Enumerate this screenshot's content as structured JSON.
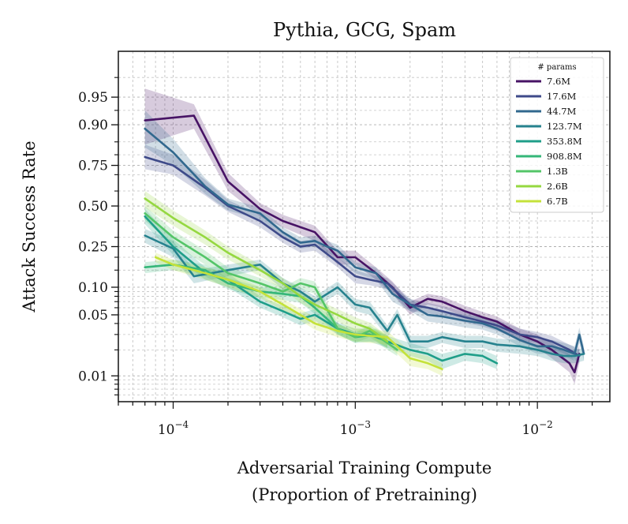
{
  "chart_data": {
    "type": "line",
    "title": "Pythia, GCG, Spam",
    "xlabel": [
      "Adversarial Training Compute",
      "(Proportion of Pretraining)"
    ],
    "ylabel": "Attack Success Rate",
    "x_scale": "log",
    "y_scale": "logit",
    "xlim": [
      5e-05,
      0.025
    ],
    "ylim": [
      0.005,
      0.985
    ],
    "x_ticks": [
      {
        "value": 0.0001,
        "label": "10^-4"
      },
      {
        "value": 0.001,
        "label": "10^-3"
      },
      {
        "value": 0.01,
        "label": "10^-2"
      }
    ],
    "y_ticks": [
      {
        "value": 0.01,
        "label": "0.01"
      },
      {
        "value": 0.05,
        "label": "0.05"
      },
      {
        "value": 0.1,
        "label": "0.10"
      },
      {
        "value": 0.25,
        "label": "0.25"
      },
      {
        "value": 0.5,
        "label": "0.50"
      },
      {
        "value": 0.75,
        "label": "0.75"
      },
      {
        "value": 0.9,
        "label": "0.90"
      },
      {
        "value": 0.95,
        "label": "0.95"
      }
    ],
    "grid": true,
    "legend": {
      "title": "# params",
      "position": "top-right"
    },
    "series": [
      {
        "name": "7.6M",
        "color": "#471365",
        "x": [
          7e-05,
          0.00013,
          0.0002,
          0.0003,
          0.0004,
          0.0006,
          0.0008,
          0.001,
          0.0013,
          0.0016,
          0.002,
          0.0025,
          0.003,
          0.004,
          0.005,
          0.006,
          0.008,
          0.01,
          0.012,
          0.015,
          0.016,
          0.017
        ],
        "y": [
          0.91,
          0.92,
          0.66,
          0.48,
          0.4,
          0.33,
          0.2,
          0.2,
          0.14,
          0.1,
          0.06,
          0.075,
          0.07,
          0.055,
          0.047,
          0.042,
          0.03,
          0.025,
          0.02,
          0.014,
          0.011,
          0.018
        ],
        "lo": [
          0.84,
          0.89,
          0.6,
          0.43,
          0.36,
          0.28,
          0.17,
          0.17,
          0.12,
          0.085,
          0.05,
          0.065,
          0.06,
          0.047,
          0.04,
          0.036,
          0.025,
          0.021,
          0.016,
          0.011,
          0.008,
          0.014
        ],
        "hi": [
          0.96,
          0.94,
          0.71,
          0.52,
          0.44,
          0.37,
          0.23,
          0.23,
          0.16,
          0.115,
          0.07,
          0.085,
          0.08,
          0.063,
          0.054,
          0.048,
          0.035,
          0.03,
          0.024,
          0.018,
          0.015,
          0.023
        ]
      },
      {
        "name": "17.6M",
        "color": "#3e4a89",
        "x": [
          7e-05,
          0.0001,
          0.00015,
          0.0002,
          0.0003,
          0.0004,
          0.0005,
          0.0006,
          0.0008,
          0.001,
          0.0012,
          0.0015,
          0.002,
          0.0025,
          0.003,
          0.004,
          0.005,
          0.006,
          0.008,
          0.01,
          0.012,
          0.015,
          0.017
        ],
        "y": [
          0.79,
          0.75,
          0.62,
          0.5,
          0.4,
          0.3,
          0.25,
          0.26,
          0.18,
          0.13,
          0.12,
          0.11,
          0.065,
          0.06,
          0.055,
          0.047,
          0.042,
          0.038,
          0.03,
          0.028,
          0.025,
          0.02,
          0.017
        ],
        "lo": [
          0.73,
          0.7,
          0.57,
          0.46,
          0.36,
          0.27,
          0.22,
          0.23,
          0.16,
          0.11,
          0.105,
          0.095,
          0.055,
          0.052,
          0.048,
          0.041,
          0.037,
          0.033,
          0.026,
          0.024,
          0.021,
          0.017,
          0.014
        ],
        "hi": [
          0.84,
          0.8,
          0.67,
          0.54,
          0.44,
          0.33,
          0.28,
          0.29,
          0.2,
          0.15,
          0.135,
          0.125,
          0.075,
          0.068,
          0.063,
          0.054,
          0.048,
          0.044,
          0.035,
          0.032,
          0.029,
          0.023,
          0.02
        ]
      },
      {
        "name": "44.7M",
        "color": "#31688e",
        "x": [
          7e-05,
          0.0001,
          0.00015,
          0.0002,
          0.0003,
          0.0004,
          0.0005,
          0.0006,
          0.0007,
          0.0008,
          0.001,
          0.0013,
          0.0016,
          0.002,
          0.0025,
          0.003,
          0.004,
          0.005,
          0.006,
          0.008,
          0.01,
          0.012,
          0.014,
          0.016,
          0.017,
          0.018
        ],
        "y": [
          0.89,
          0.81,
          0.63,
          0.51,
          0.45,
          0.33,
          0.27,
          0.28,
          0.25,
          0.23,
          0.16,
          0.14,
          0.085,
          0.065,
          0.05,
          0.048,
          0.043,
          0.04,
          0.035,
          0.026,
          0.022,
          0.022,
          0.02,
          0.018,
          0.03,
          0.018
        ],
        "lo": [
          0.83,
          0.75,
          0.58,
          0.47,
          0.41,
          0.3,
          0.24,
          0.25,
          0.22,
          0.2,
          0.14,
          0.12,
          0.07,
          0.055,
          0.042,
          0.04,
          0.036,
          0.034,
          0.03,
          0.022,
          0.018,
          0.018,
          0.017,
          0.015,
          0.024,
          0.015
        ],
        "hi": [
          0.93,
          0.86,
          0.68,
          0.55,
          0.49,
          0.36,
          0.3,
          0.31,
          0.28,
          0.26,
          0.18,
          0.16,
          0.1,
          0.075,
          0.058,
          0.056,
          0.05,
          0.047,
          0.041,
          0.031,
          0.026,
          0.026,
          0.024,
          0.022,
          0.036,
          0.022
        ]
      },
      {
        "name": "123.7M",
        "color": "#26828e",
        "x": [
          7e-05,
          0.0001,
          0.00013,
          0.0002,
          0.0003,
          0.0004,
          0.0005,
          0.0006,
          0.0008,
          0.001,
          0.0012,
          0.0015,
          0.0017,
          0.002,
          0.0025,
          0.003,
          0.004,
          0.005,
          0.006,
          0.008,
          0.01,
          0.012,
          0.014,
          0.016,
          0.018
        ],
        "y": [
          0.31,
          0.24,
          0.13,
          0.15,
          0.17,
          0.11,
          0.09,
          0.07,
          0.1,
          0.065,
          0.06,
          0.033,
          0.05,
          0.025,
          0.025,
          0.028,
          0.025,
          0.025,
          0.023,
          0.022,
          0.02,
          0.018,
          0.017,
          0.017,
          0.018
        ],
        "lo": [
          0.27,
          0.2,
          0.11,
          0.13,
          0.15,
          0.095,
          0.077,
          0.06,
          0.085,
          0.055,
          0.05,
          0.028,
          0.042,
          0.021,
          0.021,
          0.024,
          0.021,
          0.021,
          0.019,
          0.018,
          0.017,
          0.015,
          0.014,
          0.014,
          0.015
        ],
        "hi": [
          0.35,
          0.28,
          0.15,
          0.17,
          0.19,
          0.125,
          0.1,
          0.08,
          0.115,
          0.075,
          0.07,
          0.038,
          0.058,
          0.029,
          0.029,
          0.032,
          0.029,
          0.029,
          0.027,
          0.026,
          0.023,
          0.021,
          0.02,
          0.02,
          0.021
        ]
      },
      {
        "name": "353.8M",
        "color": "#1f9e89",
        "x": [
          7e-05,
          0.0001,
          0.00015,
          0.0002,
          0.0003,
          0.0004,
          0.0005,
          0.0006,
          0.0008,
          0.001,
          0.0012,
          0.0015,
          0.002,
          0.0025,
          0.003,
          0.004,
          0.005,
          0.006
        ],
        "y": [
          0.43,
          0.25,
          0.14,
          0.12,
          0.07,
          0.055,
          0.045,
          0.05,
          0.035,
          0.03,
          0.03,
          0.025,
          0.02,
          0.018,
          0.015,
          0.018,
          0.017,
          0.014
        ],
        "lo": [
          0.38,
          0.21,
          0.12,
          0.1,
          0.06,
          0.047,
          0.038,
          0.043,
          0.03,
          0.025,
          0.025,
          0.021,
          0.017,
          0.015,
          0.012,
          0.015,
          0.014,
          0.012
        ],
        "hi": [
          0.48,
          0.29,
          0.16,
          0.14,
          0.08,
          0.063,
          0.052,
          0.058,
          0.041,
          0.035,
          0.035,
          0.029,
          0.024,
          0.021,
          0.018,
          0.021,
          0.02,
          0.017
        ]
      },
      {
        "name": "908.8M",
        "color": "#35b779",
        "x": [
          7e-05,
          0.0001,
          0.00015,
          0.0002,
          0.0003,
          0.0004,
          0.0005,
          0.0006,
          0.0008,
          0.001,
          0.0013,
          0.0015
        ],
        "y": [
          0.16,
          0.17,
          0.15,
          0.11,
          0.09,
          0.085,
          0.08,
          0.06,
          0.035,
          0.028,
          0.03,
          0.025
        ],
        "lo": [
          0.14,
          0.15,
          0.13,
          0.095,
          0.077,
          0.073,
          0.068,
          0.051,
          0.03,
          0.024,
          0.025,
          0.021
        ],
        "hi": [
          0.18,
          0.19,
          0.17,
          0.125,
          0.1,
          0.097,
          0.09,
          0.068,
          0.04,
          0.032,
          0.035,
          0.029
        ]
      },
      {
        "name": "1.3B",
        "color": "#54c568",
        "x": [
          7e-05,
          0.0001,
          0.00015,
          0.0002,
          0.0003,
          0.0004,
          0.0005,
          0.0006,
          0.0008,
          0.001,
          0.0012,
          0.0015,
          0.0017
        ],
        "y": [
          0.45,
          0.3,
          0.2,
          0.14,
          0.11,
          0.09,
          0.11,
          0.1,
          0.035,
          0.028,
          0.033,
          0.024,
          0.02
        ],
        "lo": [
          0.4,
          0.26,
          0.17,
          0.12,
          0.095,
          0.077,
          0.095,
          0.085,
          0.03,
          0.024,
          0.028,
          0.02,
          0.017
        ],
        "hi": [
          0.5,
          0.34,
          0.23,
          0.16,
          0.125,
          0.1,
          0.125,
          0.115,
          0.04,
          0.032,
          0.038,
          0.028,
          0.023
        ]
      },
      {
        "name": "2.6B",
        "color": "#95d840",
        "x": [
          7e-05,
          0.0001,
          0.00015,
          0.0002,
          0.0003,
          0.0004,
          0.0005,
          0.0006,
          0.0008,
          0.001,
          0.0012,
          0.0015
        ],
        "y": [
          0.55,
          0.42,
          0.3,
          0.22,
          0.15,
          0.11,
          0.08,
          0.065,
          0.05,
          0.04,
          0.035,
          0.025
        ],
        "lo": [
          0.49,
          0.37,
          0.26,
          0.19,
          0.13,
          0.095,
          0.068,
          0.055,
          0.042,
          0.033,
          0.029,
          0.021
        ],
        "hi": [
          0.6,
          0.47,
          0.34,
          0.25,
          0.17,
          0.125,
          0.092,
          0.075,
          0.058,
          0.047,
          0.041,
          0.029
        ]
      },
      {
        "name": "6.7B",
        "color": "#c4e23a",
        "x": [
          8e-05,
          0.0001,
          0.00015,
          0.0002,
          0.0003,
          0.0004,
          0.0005,
          0.0006,
          0.0008,
          0.001,
          0.0012,
          0.0015,
          0.002,
          0.0025,
          0.003
        ],
        "y": [
          0.2,
          0.17,
          0.14,
          0.12,
          0.09,
          0.065,
          0.05,
          0.04,
          0.033,
          0.03,
          0.029,
          0.028,
          0.016,
          0.014,
          0.012
        ],
        "lo": [
          0.18,
          0.15,
          0.12,
          0.1,
          0.077,
          0.056,
          0.043,
          0.034,
          0.028,
          0.025,
          0.024,
          0.023,
          0.013,
          0.012,
          0.01
        ],
        "hi": [
          0.22,
          0.19,
          0.16,
          0.14,
          0.1,
          0.075,
          0.058,
          0.047,
          0.039,
          0.035,
          0.034,
          0.033,
          0.019,
          0.017,
          0.014
        ]
      }
    ]
  }
}
